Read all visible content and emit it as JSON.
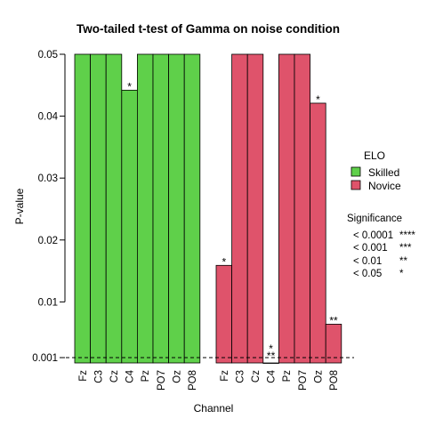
{
  "chart_data": {
    "type": "bar",
    "title": "Two-tailed t-test of Gamma on noise condition",
    "xlabel": "Channel",
    "ylabel": "P-value",
    "ylim": [
      0.001,
      0.05
    ],
    "yticks": [
      0.001,
      0.01,
      0.02,
      0.03,
      0.04,
      0.05
    ],
    "ytick_labels": [
      "0.001",
      "0.01",
      "0.02",
      "0.03",
      "0.04",
      "0.05"
    ],
    "reference_line": 0.001,
    "categories": [
      "Fz",
      "C3",
      "Cz",
      "C4",
      "Pz",
      "PO7",
      "Oz",
      "PO8"
    ],
    "legend_title": "ELO",
    "series": [
      {
        "name": "Skilled",
        "color": "#5fd04a",
        "values": [
          0.05,
          0.05,
          0.05,
          0.0442,
          0.05,
          0.05,
          0.05,
          0.05
        ],
        "significance": [
          "",
          "",
          "",
          "*",
          "",
          "",
          "",
          ""
        ]
      },
      {
        "name": "Novice",
        "color": "#df536b",
        "values": [
          0.0159,
          0.05,
          0.05,
          0.0001,
          0.05,
          0.05,
          0.0421,
          0.0064
        ],
        "significance": [
          "*",
          "",
          "",
          "*\n**",
          "",
          "",
          "*",
          "**"
        ]
      }
    ],
    "significance_legend": {
      "title": "Significance",
      "rows": [
        {
          "threshold": "< 0.0001",
          "stars": "****"
        },
        {
          "threshold": "< 0.001",
          "stars": "***"
        },
        {
          "threshold": "< 0.01",
          "stars": "**"
        },
        {
          "threshold": "< 0.05",
          "stars": "*"
        }
      ]
    }
  }
}
